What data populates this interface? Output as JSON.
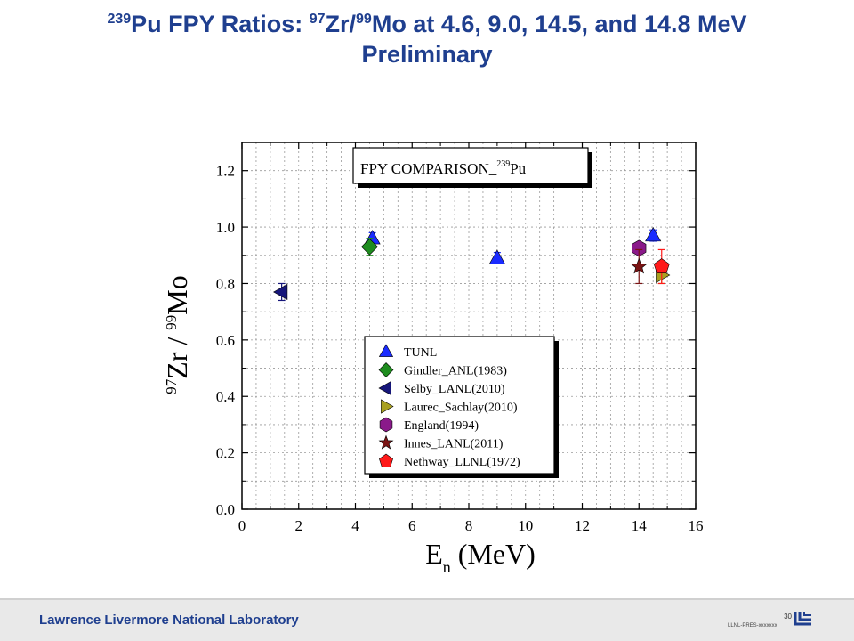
{
  "slide": {
    "title_line1": {
      "sup1": "239",
      "t1": "Pu FPY Ratios: ",
      "sup2": "97",
      "t2": "Zr/",
      "sup3": "99",
      "t3": "Mo at 4.6, 9.0, 14.5, and 14.8 MeV"
    },
    "title_line2": "Preliminary",
    "footer": "Lawrence Livermore National Laboratory",
    "page_number": "30",
    "doc_id": "LLNL-PRES-xxxxxxx"
  },
  "chart_data": {
    "type": "scatter",
    "title_box": {
      "text": "FPY COMPARISON_",
      "sup": "239",
      "suffix": "Pu"
    },
    "xlabel": {
      "main": "E",
      "sub": "n",
      "unit": " (MeV)"
    },
    "ylabel": {
      "sup1": "97",
      "t1": "Zr / ",
      "sup2": "99",
      "t2": "Mo"
    },
    "xlim": [
      0,
      16
    ],
    "ylim": [
      0,
      1.3
    ],
    "x_ticks": [
      "0",
      "2",
      "4",
      "6",
      "8",
      "10",
      "12",
      "14",
      "16"
    ],
    "y_ticks": [
      "0.0",
      "0.2",
      "0.4",
      "0.6",
      "0.8",
      "1.0",
      "1.2"
    ],
    "grid": true,
    "legend_placement": "bottom-center",
    "series": [
      {
        "name": "TUNL",
        "marker": "triangle-up",
        "color": "#1a2bff",
        "points": [
          {
            "x": 4.6,
            "y": 0.96,
            "err": 0.02
          },
          {
            "x": 9.0,
            "y": 0.89,
            "err": 0.02
          },
          {
            "x": 14.5,
            "y": 0.97,
            "err": 0.02
          }
        ]
      },
      {
        "name": "Gindler_ANL(1983)",
        "marker": "diamond",
        "color": "#1e8c1e",
        "points": [
          {
            "x": 4.5,
            "y": 0.93,
            "err": 0.03
          }
        ]
      },
      {
        "name": "Selby_LANL(2010)",
        "marker": "triangle-left",
        "color": "#16167a",
        "points": [
          {
            "x": 1.4,
            "y": 0.77,
            "err": 0.03
          }
        ]
      },
      {
        "name": "Laurec_Sachlay(2010)",
        "marker": "triangle-right",
        "color": "#a8a020",
        "points": [
          {
            "x": 14.8,
            "y": 0.83,
            "err": 0.03
          }
        ]
      },
      {
        "name": "England(1994)",
        "marker": "hexagon",
        "color": "#8a1a8a",
        "points": [
          {
            "x": 14.0,
            "y": 0.925,
            "err": 0.0
          }
        ]
      },
      {
        "name": "Innes_LANL(2011)",
        "marker": "star",
        "color": "#7a1414",
        "points": [
          {
            "x": 14.0,
            "y": 0.86,
            "err": 0.06
          }
        ]
      },
      {
        "name": "Nethway_LLNL(1972)",
        "marker": "pentagon",
        "color": "#ff1a1a",
        "points": [
          {
            "x": 14.8,
            "y": 0.86,
            "err": 0.06
          }
        ]
      }
    ]
  }
}
